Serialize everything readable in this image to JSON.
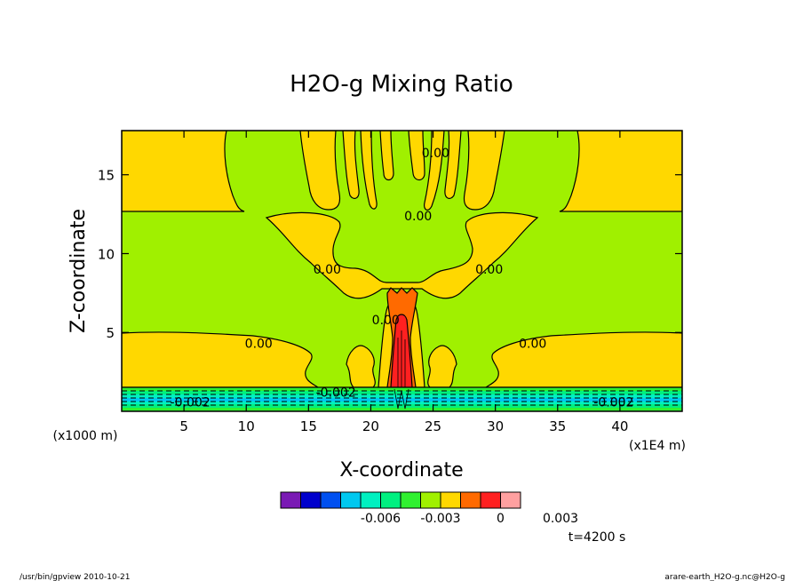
{
  "page": {
    "footer_left": "/usr/bin/gpview   2010-10-21",
    "footer_right": "arare-earth_H2O-g.nc@H2O-g",
    "time_label": "t=4200 s"
  },
  "chart_data": {
    "type": "contour",
    "title": "H2O-g Mixing Ratio",
    "xlabel": "X-coordinate",
    "ylabel": "Z-coordinate",
    "x_unit": "(x1E4 m)",
    "y_unit": "(x1000 m)",
    "xlim": [
      0,
      45
    ],
    "ylim": [
      0,
      17.8
    ],
    "x_ticks": [
      5,
      10,
      15,
      20,
      25,
      30,
      35,
      40
    ],
    "y_ticks": [
      5,
      10,
      15
    ],
    "contour_labels": [
      {
        "text": "0.00",
        "x": 11,
        "y": 4.3
      },
      {
        "text": "0.00",
        "x": 33,
        "y": 4.3
      },
      {
        "text": "0.00",
        "x": 16.5,
        "y": 9.0
      },
      {
        "text": "0.00",
        "x": 29.5,
        "y": 9.0
      },
      {
        "text": "0.00",
        "x": 21.2,
        "y": 5.8
      },
      {
        "text": "0.00",
        "x": 23.8,
        "y": 12.4
      },
      {
        "text": "0.00",
        "x": 25.2,
        "y": 16.4
      },
      {
        "text": "-0.002",
        "x": 5.5,
        "y": 0.6
      },
      {
        "text": "-0.002",
        "x": 17.2,
        "y": 1.2
      },
      {
        "text": "-0.002",
        "x": 39.5,
        "y": 0.6
      }
    ],
    "colorbar": {
      "colors": [
        "#7a1ab4",
        "#0000cc",
        "#0050f0",
        "#00c8f0",
        "#00f0c0",
        "#00f080",
        "#30f030",
        "#a0f000",
        "#ffd800",
        "#ff6a00",
        "#ff2020",
        "#ffa0a0"
      ],
      "tick_labels": [
        {
          "text": "-0.006",
          "boundary": 2
        },
        {
          "text": "-0.003",
          "boundary": 4
        },
        {
          "text": "0",
          "boundary": 6
        },
        {
          "text": "0.003",
          "boundary": 8
        }
      ]
    }
  }
}
